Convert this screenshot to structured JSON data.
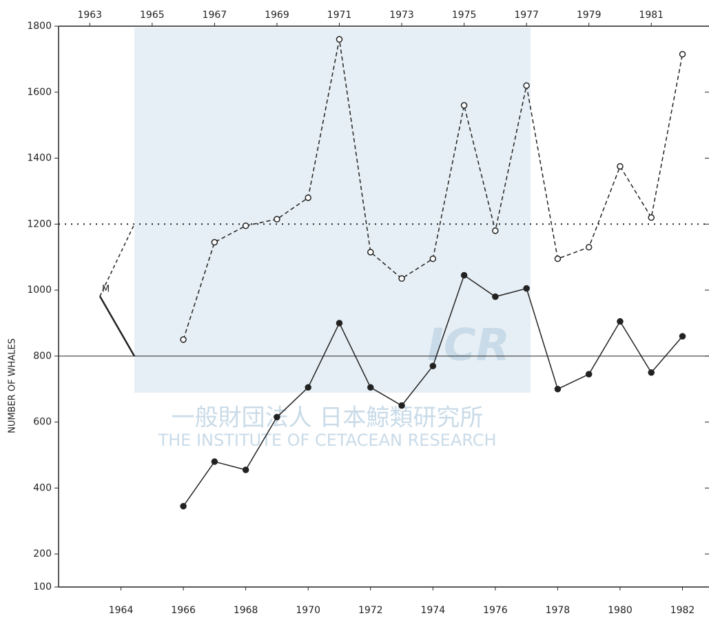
{
  "chart_data": {
    "type": "line",
    "ylabel": "NUMBER OF WHALES",
    "x": [
      1966,
      1967,
      1968,
      1969,
      1970,
      1971,
      1972,
      1973,
      1974,
      1975,
      1976,
      1977,
      1978,
      1979,
      1980,
      1981,
      1982
    ],
    "series": [
      {
        "color": "#222222",
        "style": "dashed",
        "marker": "open",
        "values": [
          850,
          1145,
          1195,
          1215,
          1280,
          1760,
          1115,
          1035,
          1095,
          1560,
          1180,
          1620,
          1095,
          1130,
          1375,
          1220,
          1715
        ]
      },
      {
        "color": "#222222",
        "style": "solid",
        "marker": "filled",
        "values": [
          345,
          480,
          455,
          615,
          705,
          900,
          705,
          650,
          770,
          1045,
          980,
          1005,
          700,
          745,
          905,
          750,
          860
        ]
      }
    ],
    "xlim": [
      1962,
      1982.85
    ],
    "xticks": [
      1964,
      1966,
      1968,
      1970,
      1972,
      1974,
      1976,
      1978,
      1980,
      1982
    ],
    "x2ticks": [
      1963,
      1965,
      1967,
      1969,
      1971,
      1973,
      1975,
      1977,
      1979,
      1981
    ],
    "ylim": [
      100,
      1800
    ],
    "yticks": [
      100,
      200,
      400,
      600,
      800,
      1000,
      1200,
      1400,
      1600,
      1800
    ],
    "reference_lines": [
      {
        "value": 1200,
        "style": "dotted"
      },
      {
        "value": 800,
        "style": "solid"
      }
    ],
    "annotation": "M",
    "watermark": {
      "logo": "ICR",
      "line1": "一般財団法人 日本鯨類研究所",
      "line2": "THE INSTITUTE OF CETACEAN RESEARCH"
    }
  }
}
